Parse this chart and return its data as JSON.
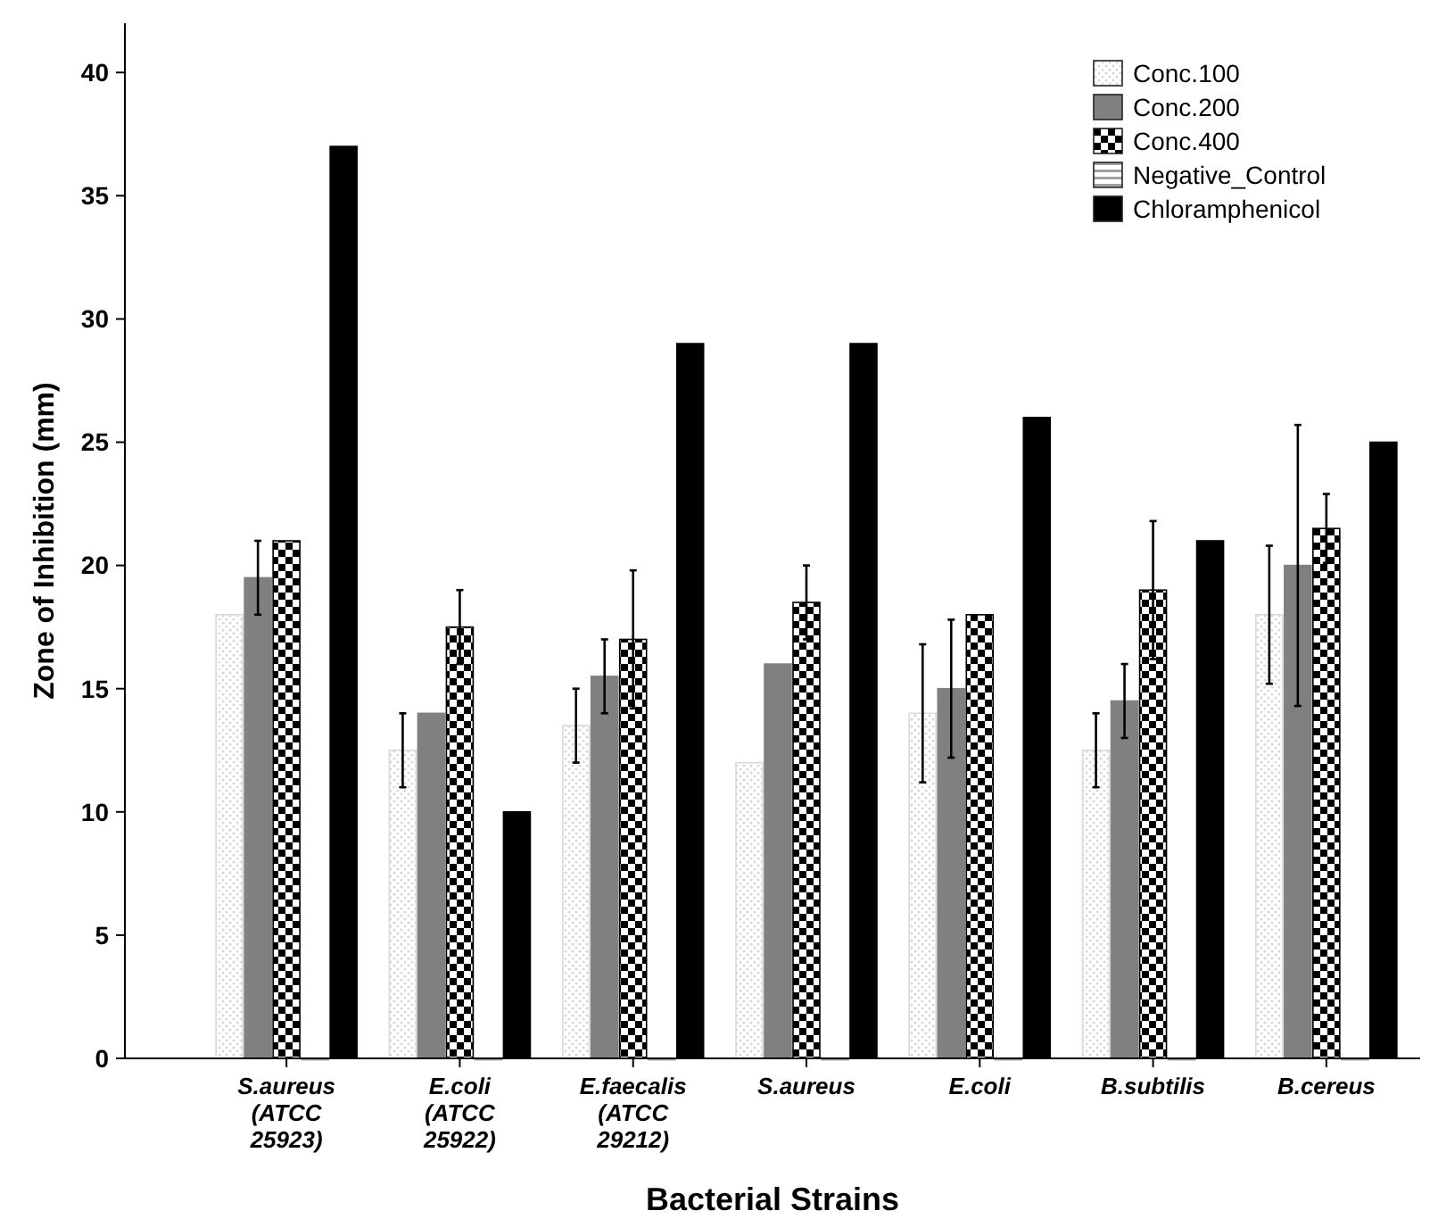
{
  "chart_data": {
    "type": "bar",
    "xlabel": "Bacterial Strains",
    "ylabel": "Zone of Inhibition (mm)",
    "categories": [
      "S.aureus\n(ATCC\n25923)",
      "E.coli\n(ATCC\n25922)",
      "E.faecalis\n(ATCC\n29212)",
      "S.aureus",
      "E.coli",
      "B.subtilis",
      "B.cereus"
    ],
    "series": [
      {
        "name": "Conc.100",
        "color": "#d9d9d9",
        "values": [
          18,
          12.5,
          13.5,
          12,
          14,
          12.5,
          18
        ],
        "errors": [
          null,
          1.5,
          1.5,
          null,
          2.8,
          1.5,
          2.8
        ]
      },
      {
        "name": "Conc.200",
        "color": "#808080",
        "values": [
          19.5,
          14,
          15.5,
          16,
          15,
          14.5,
          20
        ],
        "errors": [
          1.5,
          null,
          1.5,
          null,
          2.8,
          1.5,
          5.7
        ]
      },
      {
        "name": "Conc.400",
        "color": "#000000",
        "values": [
          21,
          17.5,
          17,
          18.5,
          18,
          19,
          21.5
        ],
        "errors": [
          null,
          1.5,
          2.8,
          1.5,
          null,
          2.8,
          1.4
        ]
      },
      {
        "name": "Negative_Control",
        "color": "#a0a0a0",
        "values": [
          0,
          0,
          0,
          0,
          0,
          0,
          0
        ]
      },
      {
        "name": "Chloramphenicol",
        "color": "#000000",
        "values": [
          37,
          10,
          29,
          29,
          26,
          21,
          25
        ]
      }
    ],
    "ylim": [
      0,
      42
    ],
    "yticks": [
      0,
      5,
      10,
      15,
      20,
      25,
      30,
      35,
      40
    ],
    "grid": false,
    "legend": "top right"
  }
}
